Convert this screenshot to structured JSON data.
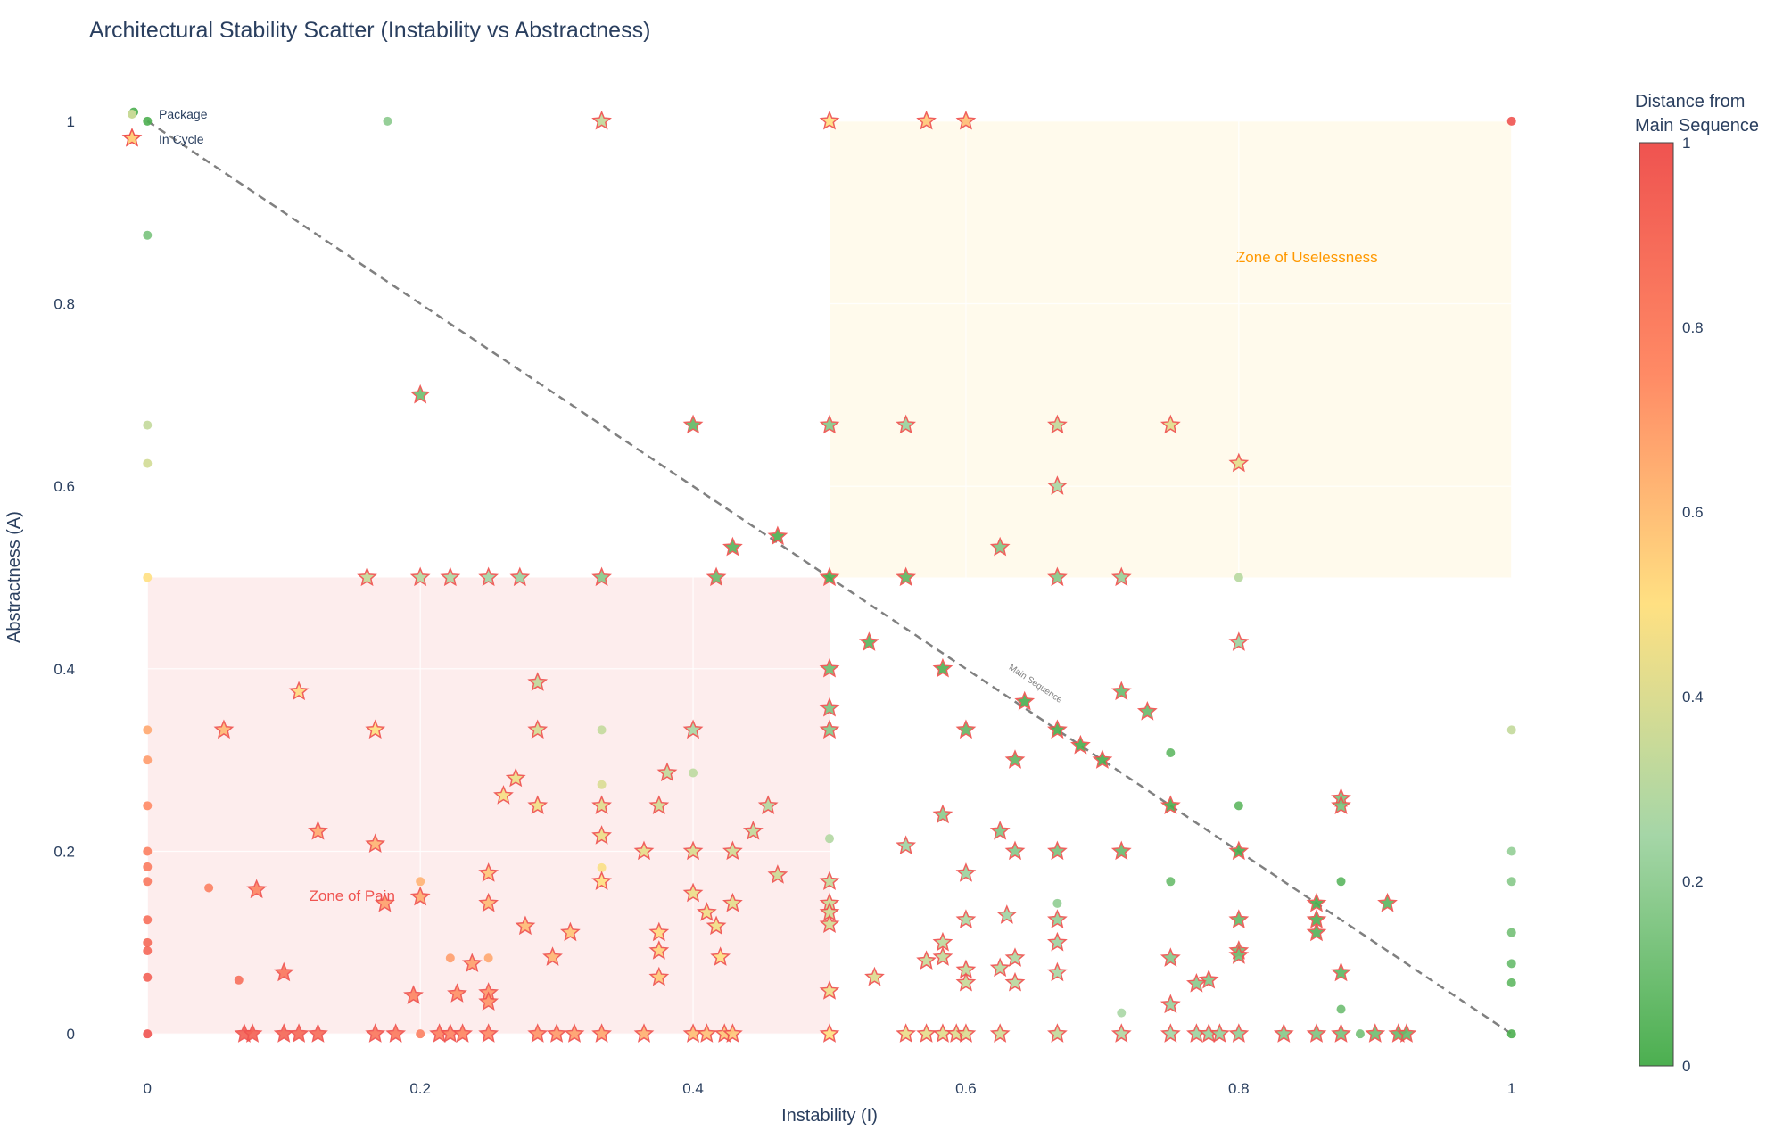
{
  "chart_data": {
    "type": "scatter",
    "title": "Architectural Stability Scatter (Instability vs Abstractness)",
    "xlabel": "Instability (I)",
    "ylabel": "Abstractness (A)",
    "xlim": [
      -0.01,
      1.01
    ],
    "ylim": [
      -0.035,
      1.035
    ],
    "x_ticks": [
      0,
      0.2,
      0.4,
      0.6,
      0.8,
      1
    ],
    "y_ticks": [
      0,
      0.2,
      0.4,
      0.6,
      0.8,
      1
    ],
    "x_tick_labels": [
      "0",
      "0.2",
      "0.4",
      "0.6",
      "0.8",
      "1"
    ],
    "y_tick_labels": [
      "0",
      "0.2",
      "0.4",
      "0.6",
      "0.8",
      "1"
    ],
    "grid": true,
    "legend": {
      "position": "top-left",
      "entries": [
        "Package",
        "In Cycle"
      ]
    },
    "colorbar": {
      "title_lines": [
        "Distance from",
        "Main Sequence"
      ],
      "range": [
        0,
        1
      ],
      "ticks": [
        0,
        0.2,
        0.4,
        0.6,
        0.8,
        1
      ],
      "tick_labels": [
        "0",
        "0.2",
        "0.4",
        "0.6",
        "0.8",
        "1"
      ],
      "colorscale": [
        [
          0,
          "#4caf50"
        ],
        [
          0.25,
          "#a5d6a7"
        ],
        [
          0.5,
          "#ffe082"
        ],
        [
          0.75,
          "#ff8a65"
        ],
        [
          1,
          "#ef5350"
        ]
      ]
    },
    "main_sequence": {
      "label": "Main Sequence",
      "from": [
        0,
        1
      ],
      "to": [
        1,
        0
      ],
      "color": "#808080"
    },
    "zones": [
      {
        "label": "Zone of Pain",
        "x": [
          0,
          0.5
        ],
        "y": [
          0,
          0.5
        ],
        "fill": "rgba(239,83,80,0.1)",
        "label_color": "#ef5350",
        "label_at": [
          0.15,
          0.15
        ]
      },
      {
        "label": "Zone of Uselessness",
        "x": [
          0.5,
          1
        ],
        "y": [
          0.5,
          1
        ],
        "fill": "rgba(255,193,7,0.08)",
        "label_color": "#ff9800",
        "label_at": [
          0.85,
          0.85
        ]
      }
    ],
    "series": [
      {
        "name": "Package",
        "marker": "circle",
        "points": [
          [
            -0.01,
            1.01
          ],
          [
            0,
            1
          ],
          [
            0,
            0.875
          ],
          [
            0,
            0.667
          ],
          [
            0,
            0.625
          ],
          [
            0,
            0.5
          ],
          [
            0,
            0.333
          ],
          [
            0,
            0.3
          ],
          [
            0,
            0.25
          ],
          [
            0,
            0.2
          ],
          [
            0,
            0.183
          ],
          [
            0,
            0.167
          ],
          [
            0,
            0.125
          ],
          [
            0,
            0.1
          ],
          [
            0,
            0.091
          ],
          [
            0,
            0.062
          ],
          [
            0,
            0
          ],
          [
            0.045,
            0.16
          ],
          [
            0.067,
            0.059
          ],
          [
            0.176,
            1
          ],
          [
            0.2,
            0.167
          ],
          [
            0.2,
            0
          ],
          [
            0.222,
            0.083
          ],
          [
            0.25,
            0.083
          ],
          [
            0.333,
            0.333
          ],
          [
            0.333,
            0.273
          ],
          [
            0.333,
            0.182
          ],
          [
            0.4,
            0.286
          ],
          [
            0.5,
            0.214
          ],
          [
            0.667,
            0.143
          ],
          [
            0.714,
            0.023
          ],
          [
            0.75,
            0.308
          ],
          [
            0.75,
            0.167
          ],
          [
            0.8,
            0.5
          ],
          [
            0.8,
            0.25
          ],
          [
            0.875,
            0.167
          ],
          [
            0.875,
            0.027
          ],
          [
            0.889,
            0
          ],
          [
            1,
            1
          ],
          [
            1,
            0.333
          ],
          [
            1,
            0.2
          ],
          [
            1,
            0.167
          ],
          [
            1,
            0.111
          ],
          [
            1,
            0.077
          ],
          [
            1,
            0.056
          ],
          [
            1,
            0
          ]
        ]
      },
      {
        "name": "In Cycle",
        "marker": "star",
        "points": [
          [
            0.333,
            1
          ],
          [
            0.5,
            1
          ],
          [
            0.571,
            1
          ],
          [
            0.6,
            1
          ],
          [
            0.2,
            0.7
          ],
          [
            0.4,
            0.667
          ],
          [
            0.5,
            0.667
          ],
          [
            0.556,
            0.667
          ],
          [
            0.667,
            0.667
          ],
          [
            0.75,
            0.667
          ],
          [
            0.8,
            0.625
          ],
          [
            0.667,
            0.6
          ],
          [
            0.462,
            0.545
          ],
          [
            0.429,
            0.533
          ],
          [
            0.625,
            0.533
          ],
          [
            0.161,
            0.5
          ],
          [
            0.2,
            0.5
          ],
          [
            0.222,
            0.5
          ],
          [
            0.25,
            0.5
          ],
          [
            0.273,
            0.5
          ],
          [
            0.333,
            0.5
          ],
          [
            0.417,
            0.5
          ],
          [
            0.5,
            0.5
          ],
          [
            0.556,
            0.5
          ],
          [
            0.667,
            0.5
          ],
          [
            0.714,
            0.5
          ],
          [
            0.529,
            0.429
          ],
          [
            0.8,
            0.429
          ],
          [
            0.5,
            0.4
          ],
          [
            0.583,
            0.4
          ],
          [
            0.286,
            0.385
          ],
          [
            0.111,
            0.375
          ],
          [
            0.714,
            0.375
          ],
          [
            0.643,
            0.364
          ],
          [
            0.5,
            0.357
          ],
          [
            0.733,
            0.353
          ],
          [
            0.056,
            0.333
          ],
          [
            0.167,
            0.333
          ],
          [
            0.286,
            0.333
          ],
          [
            0.4,
            0.333
          ],
          [
            0.5,
            0.333
          ],
          [
            0.6,
            0.333
          ],
          [
            0.667,
            0.333
          ],
          [
            0.684,
            0.316
          ],
          [
            0.636,
            0.3
          ],
          [
            0.7,
            0.3
          ],
          [
            0.381,
            0.286
          ],
          [
            0.27,
            0.28
          ],
          [
            0.261,
            0.261
          ],
          [
            0.875,
            0.258
          ],
          [
            0.286,
            0.25
          ],
          [
            0.333,
            0.25
          ],
          [
            0.375,
            0.25
          ],
          [
            0.455,
            0.25
          ],
          [
            0.75,
            0.25
          ],
          [
            0.875,
            0.25
          ],
          [
            0.583,
            0.24
          ],
          [
            0.125,
            0.222
          ],
          [
            0.333,
            0.217
          ],
          [
            0.444,
            0.222
          ],
          [
            0.625,
            0.222
          ],
          [
            0.167,
            0.208
          ],
          [
            0.556,
            0.206
          ],
          [
            0.364,
            0.2
          ],
          [
            0.4,
            0.2
          ],
          [
            0.429,
            0.2
          ],
          [
            0.636,
            0.2
          ],
          [
            0.667,
            0.2
          ],
          [
            0.714,
            0.2
          ],
          [
            0.8,
            0.2
          ],
          [
            0.25,
            0.176
          ],
          [
            0.462,
            0.174
          ],
          [
            0.6,
            0.176
          ],
          [
            0.333,
            0.167
          ],
          [
            0.5,
            0.167
          ],
          [
            0.08,
            0.158
          ],
          [
            0.4,
            0.154
          ],
          [
            0.2,
            0.15
          ],
          [
            0.174,
            0.143
          ],
          [
            0.25,
            0.143
          ],
          [
            0.429,
            0.143
          ],
          [
            0.5,
            0.143
          ],
          [
            0.857,
            0.143
          ],
          [
            0.909,
            0.143
          ],
          [
            0.41,
            0.133
          ],
          [
            0.5,
            0.133
          ],
          [
            0.63,
            0.13
          ],
          [
            0.6,
            0.125
          ],
          [
            0.667,
            0.125
          ],
          [
            0.8,
            0.125
          ],
          [
            0.857,
            0.125
          ],
          [
            0.277,
            0.118
          ],
          [
            0.417,
            0.118
          ],
          [
            0.5,
            0.12
          ],
          [
            0.857,
            0.111
          ],
          [
            0.375,
            0.111
          ],
          [
            0.31,
            0.111
          ],
          [
            0.583,
            0.1
          ],
          [
            0.667,
            0.1
          ],
          [
            0.375,
            0.091
          ],
          [
            0.8,
            0.091
          ],
          [
            0.8,
            0.086
          ],
          [
            0.297,
            0.084
          ],
          [
            0.42,
            0.084
          ],
          [
            0.583,
            0.084
          ],
          [
            0.636,
            0.083
          ],
          [
            0.75,
            0.083
          ],
          [
            0.571,
            0.08
          ],
          [
            0.238,
            0.077
          ],
          [
            0.625,
            0.072
          ],
          [
            0.6,
            0.07
          ],
          [
            0.1,
            0.067
          ],
          [
            0.667,
            0.067
          ],
          [
            0.875,
            0.067
          ],
          [
            0.375,
            0.062
          ],
          [
            0.533,
            0.062
          ],
          [
            0.778,
            0.059
          ],
          [
            0.769,
            0.055
          ],
          [
            0.6,
            0.056
          ],
          [
            0.636,
            0.056
          ],
          [
            0.5,
            0.047
          ],
          [
            0.25,
            0.045
          ],
          [
            0.227,
            0.044
          ],
          [
            0.195,
            0.042
          ],
          [
            0.25,
            0.035
          ],
          [
            0.75,
            0.032
          ],
          [
            0.071,
            0
          ],
          [
            0.077,
            0
          ],
          [
            0.1,
            0
          ],
          [
            0.111,
            0
          ],
          [
            0.125,
            0
          ],
          [
            0.167,
            0
          ],
          [
            0.182,
            0
          ],
          [
            0.214,
            0
          ],
          [
            0.222,
            0
          ],
          [
            0.231,
            0
          ],
          [
            0.25,
            0
          ],
          [
            0.286,
            0
          ],
          [
            0.3,
            0
          ],
          [
            0.313,
            0
          ],
          [
            0.333,
            0
          ],
          [
            0.364,
            0
          ],
          [
            0.4,
            0
          ],
          [
            0.41,
            0
          ],
          [
            0.423,
            0
          ],
          [
            0.429,
            0
          ],
          [
            0.5,
            0
          ],
          [
            0.556,
            0
          ],
          [
            0.571,
            0
          ],
          [
            0.583,
            0
          ],
          [
            0.593,
            0
          ],
          [
            0.6,
            0
          ],
          [
            0.625,
            0
          ],
          [
            0.667,
            0
          ],
          [
            0.714,
            0
          ],
          [
            0.75,
            0
          ],
          [
            0.769,
            0
          ],
          [
            0.778,
            0
          ],
          [
            0.786,
            0
          ],
          [
            0.8,
            0
          ],
          [
            0.833,
            0
          ],
          [
            0.857,
            0
          ],
          [
            0.875,
            0
          ],
          [
            0.9,
            0
          ],
          [
            0.917,
            0
          ],
          [
            0.923,
            0
          ]
        ]
      }
    ]
  }
}
